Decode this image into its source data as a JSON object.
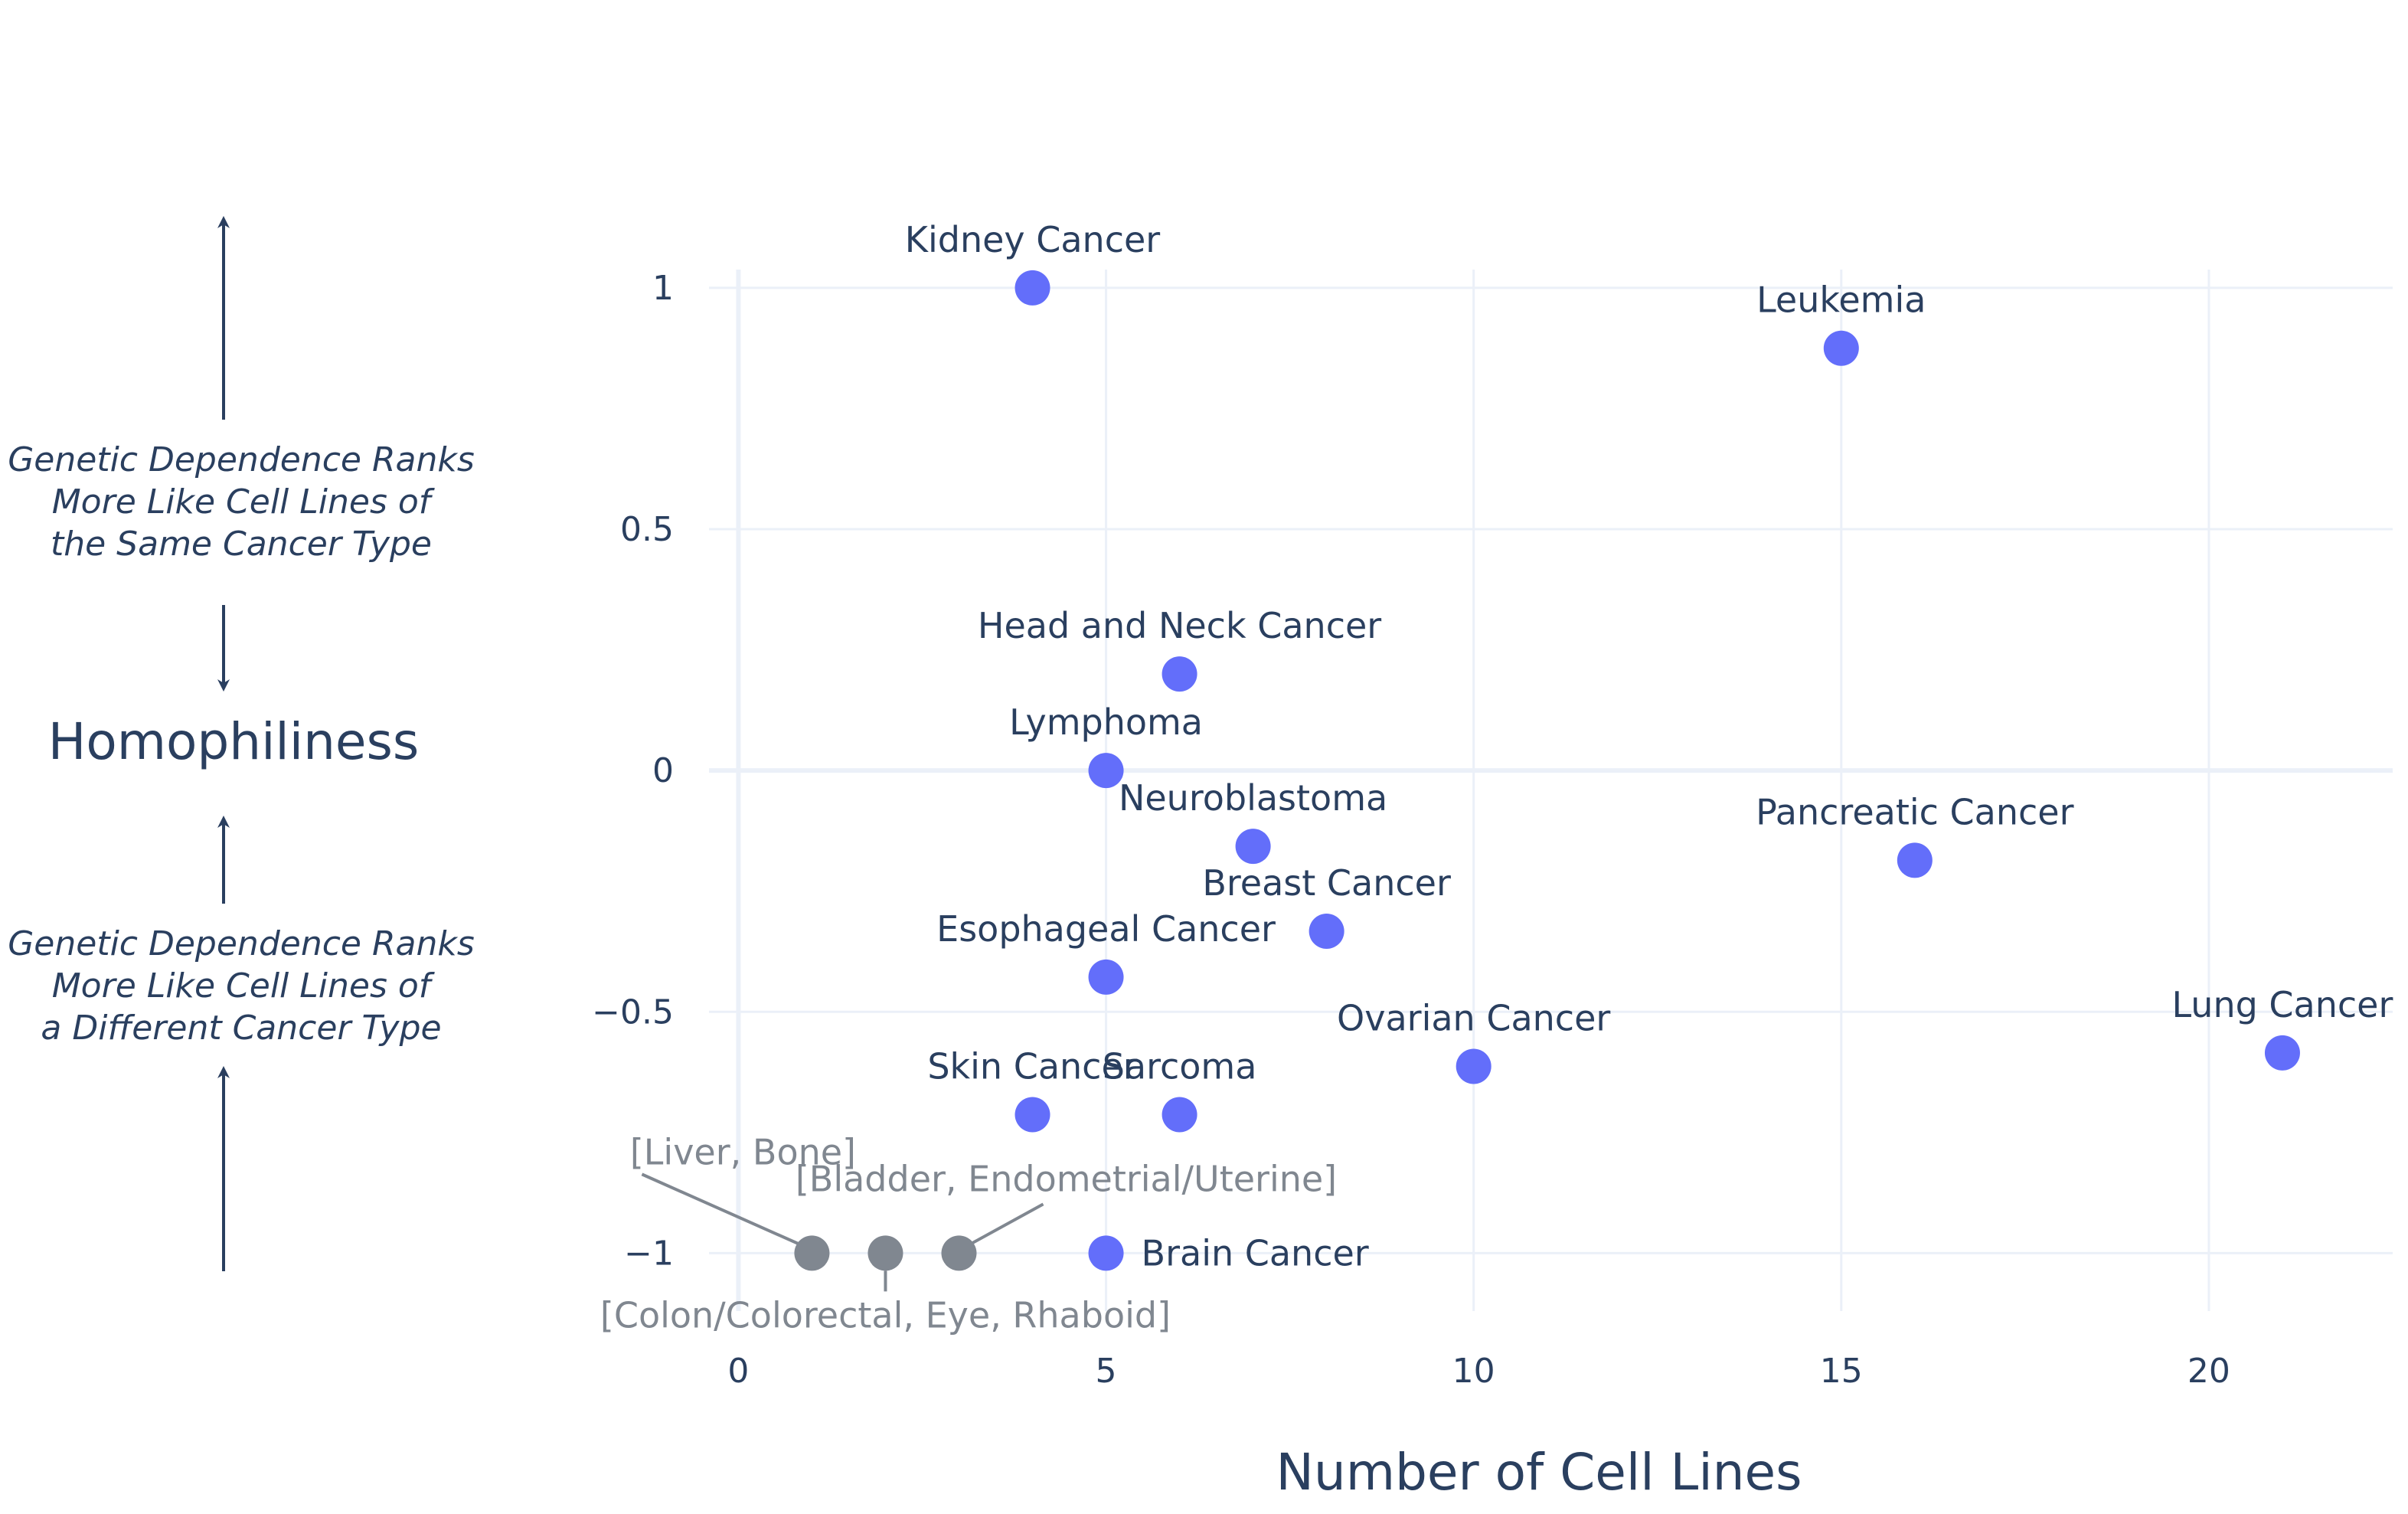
{
  "chart_data": {
    "type": "scatter",
    "xlabel": "Number of Cell Lines",
    "ylabel": "Homophiliness",
    "xlim": [
      -0.4,
      22.5
    ],
    "ylim": [
      -1.12,
      1.13
    ],
    "x_ticks": [
      0,
      5,
      10,
      15,
      20
    ],
    "x_tick_labels": [
      "0",
      "5",
      "10",
      "15",
      "20"
    ],
    "y_ticks": [
      -1,
      -0.5,
      0,
      0.5,
      1
    ],
    "y_tick_labels": [
      "−1",
      "−0.5",
      "0",
      "0.5",
      "1"
    ],
    "grid": true,
    "marker_color": "#636efa",
    "group_marker_color": "#808790",
    "text_color": "#2a3f5f",
    "group_text_color": "#808790",
    "points": [
      {
        "label": "Kidney Cancer",
        "x": 4,
        "y": 1.0,
        "label_pos": "top"
      },
      {
        "label": "Leukemia",
        "x": 15,
        "y": 0.875,
        "label_pos": "top"
      },
      {
        "label": "Head and Neck Cancer",
        "x": 6,
        "y": 0.2,
        "label_pos": "top"
      },
      {
        "label": "Lymphoma",
        "x": 5,
        "y": 0.0,
        "label_pos": "top"
      },
      {
        "label": "Neuroblastoma",
        "x": 7,
        "y": -0.157,
        "label_pos": "top"
      },
      {
        "label": "Pancreatic Cancer",
        "x": 16,
        "y": -0.186,
        "label_pos": "top"
      },
      {
        "label": "Breast Cancer",
        "x": 8,
        "y": -0.333,
        "label_pos": "top"
      },
      {
        "label": "Esophageal Cancer",
        "x": 5,
        "y": -0.428,
        "label_pos": "top"
      },
      {
        "label": "Ovarian Cancer",
        "x": 10,
        "y": -0.613,
        "label_pos": "top"
      },
      {
        "label": "Lung Cancer",
        "x": 21,
        "y": -0.585,
        "label_pos": "top"
      },
      {
        "label": "Skin Cancer",
        "x": 4,
        "y": -0.713,
        "label_pos": "top"
      },
      {
        "label": "Sarcoma",
        "x": 6,
        "y": -0.713,
        "label_pos": "top"
      },
      {
        "label": "Brain Cancer",
        "x": 5,
        "y": -1.0,
        "label_pos": "right"
      }
    ],
    "grouped_points": [
      {
        "label": "[Liver, Bone]",
        "x": 1,
        "y": -1.0,
        "callout": "upper-left"
      },
      {
        "label": "[Colon/Colorectal, Eye, Rhaboid]",
        "x": 2,
        "y": -1.0,
        "callout": "below"
      },
      {
        "label": "[Bladder, Endometrial/Uterine]",
        "x": 3,
        "y": -1.0,
        "callout": "upper-right"
      }
    ],
    "y_annotations": {
      "up": [
        "Genetic Dependence Ranks",
        "More Like Cell Lines of",
        "the Same Cancer Type"
      ],
      "down": [
        "Genetic Dependence Ranks",
        "More Like Cell Lines of",
        "a Different Cancer Type"
      ]
    }
  }
}
